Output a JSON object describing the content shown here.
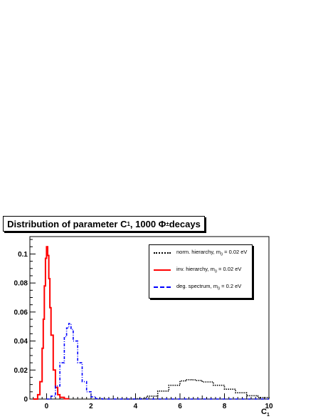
{
  "chart_data": {
    "type": "line",
    "title": {
      "prefix": "Distribution of parameter C",
      "sub": "1",
      "middle": ", 1000 Φ",
      "sup": "±",
      "suffix": " decays"
    },
    "xlabel": {
      "main": "C",
      "sub": "1"
    },
    "ylabel": "",
    "xlim": [
      -0.75,
      10
    ],
    "ylim": [
      0,
      0.112
    ],
    "xticks": [
      0,
      2,
      4,
      6,
      8,
      10
    ],
    "yticks": [
      0,
      0.02,
      0.04,
      0.06,
      0.08,
      0.1
    ],
    "ytick_labels": [
      "0",
      "0.02",
      "0.04",
      "0.06",
      "0.08",
      "0.1"
    ],
    "grid": false,
    "legend_position": "top-right",
    "series": [
      {
        "name": {
          "text": "norm. hierarchy, m",
          "sub": "0",
          "rest": " = 0.02 eV"
        },
        "color": "#000000",
        "dash": "dotted",
        "x": [
          3.5,
          4.0,
          4.5,
          5.0,
          5.5,
          6.0,
          6.25,
          6.5,
          6.75,
          7.0,
          7.5,
          8.0,
          8.5,
          9.0,
          9.5,
          10.0
        ],
        "values": [
          0.0,
          0.0003,
          0.002,
          0.0055,
          0.0095,
          0.0125,
          0.0133,
          0.0132,
          0.0128,
          0.0118,
          0.0095,
          0.0068,
          0.0043,
          0.0023,
          0.0011,
          0.0004
        ]
      },
      {
        "name": {
          "text": "inv. hierarchy, m",
          "sub": "0",
          "rest": " = 0.02 eV"
        },
        "color": "#ff0000",
        "dash": "solid",
        "x": [
          -0.6,
          -0.4,
          -0.3,
          -0.2,
          -0.15,
          -0.1,
          -0.05,
          0.0,
          0.05,
          0.1,
          0.15,
          0.2,
          0.3,
          0.4,
          0.5,
          0.6,
          0.8,
          1.0
        ],
        "values": [
          0.0,
          0.003,
          0.012,
          0.035,
          0.055,
          0.078,
          0.097,
          0.105,
          0.099,
          0.083,
          0.063,
          0.044,
          0.02,
          0.008,
          0.003,
          0.0012,
          0.0002,
          0.0
        ]
      },
      {
        "name": {
          "text": "deg. spectrum, m",
          "sub": "0",
          "rest": " = 0.2 eV"
        },
        "color": "#0000ff",
        "dash": "dashdot",
        "x": [
          0.0,
          0.2,
          0.4,
          0.6,
          0.8,
          0.9,
          1.0,
          1.1,
          1.2,
          1.4,
          1.6,
          1.8,
          2.0,
          2.2,
          2.5,
          3.0,
          10.0
        ],
        "values": [
          0.0,
          0.002,
          0.009,
          0.025,
          0.043,
          0.049,
          0.052,
          0.048,
          0.04,
          0.025,
          0.012,
          0.005,
          0.0015,
          0.0003,
          0.0,
          0.0,
          0.0
        ]
      }
    ]
  }
}
